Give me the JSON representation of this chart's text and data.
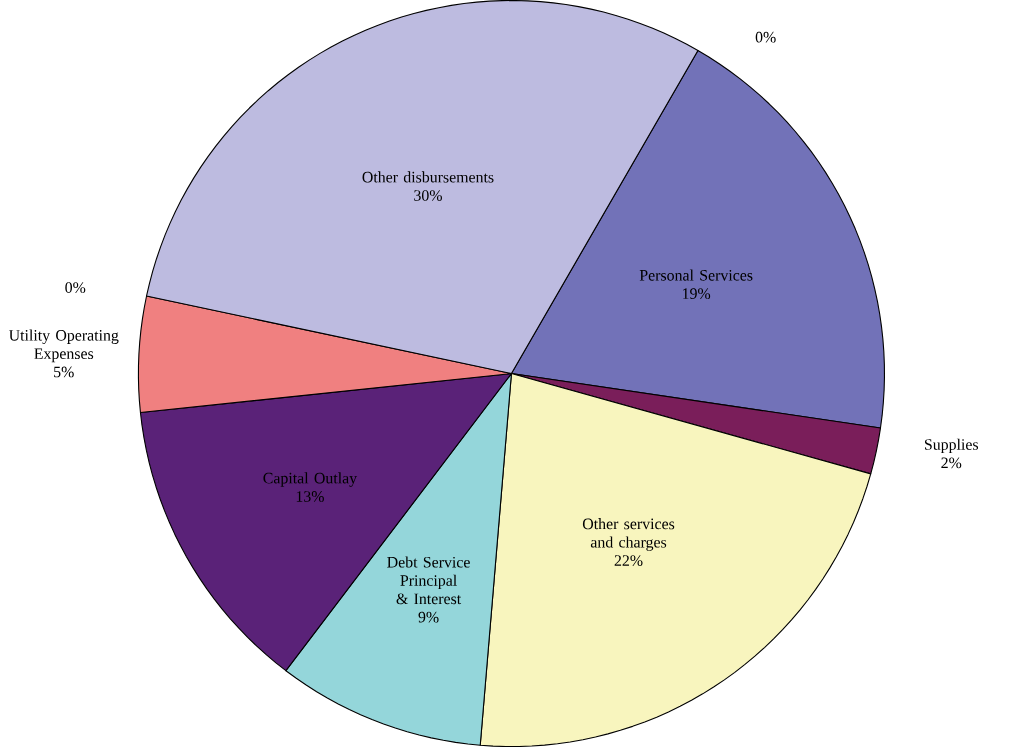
{
  "chart_data": {
    "type": "pie",
    "categories": [
      "Personal Services",
      "Supplies",
      "Other services and charges",
      "Debt Service Principal & Interest",
      "Capital Outlay",
      "Utility Operating Expenses",
      null,
      "Other disbursements",
      null
    ],
    "values": [
      19,
      2,
      22,
      9,
      13,
      5,
      0,
      30,
      0
    ],
    "value_labels": [
      "19%",
      "2%",
      "22%",
      "9%",
      "13%",
      "5%",
      "0%",
      "30%",
      "0%"
    ],
    "colors": [
      "#7272b8",
      "#7a1e5a",
      "#f8f5be",
      "#94d6da",
      "#5a2278",
      "#f08080",
      "#f08080",
      "#bdbbe0",
      "#bdbbe0"
    ]
  }
}
